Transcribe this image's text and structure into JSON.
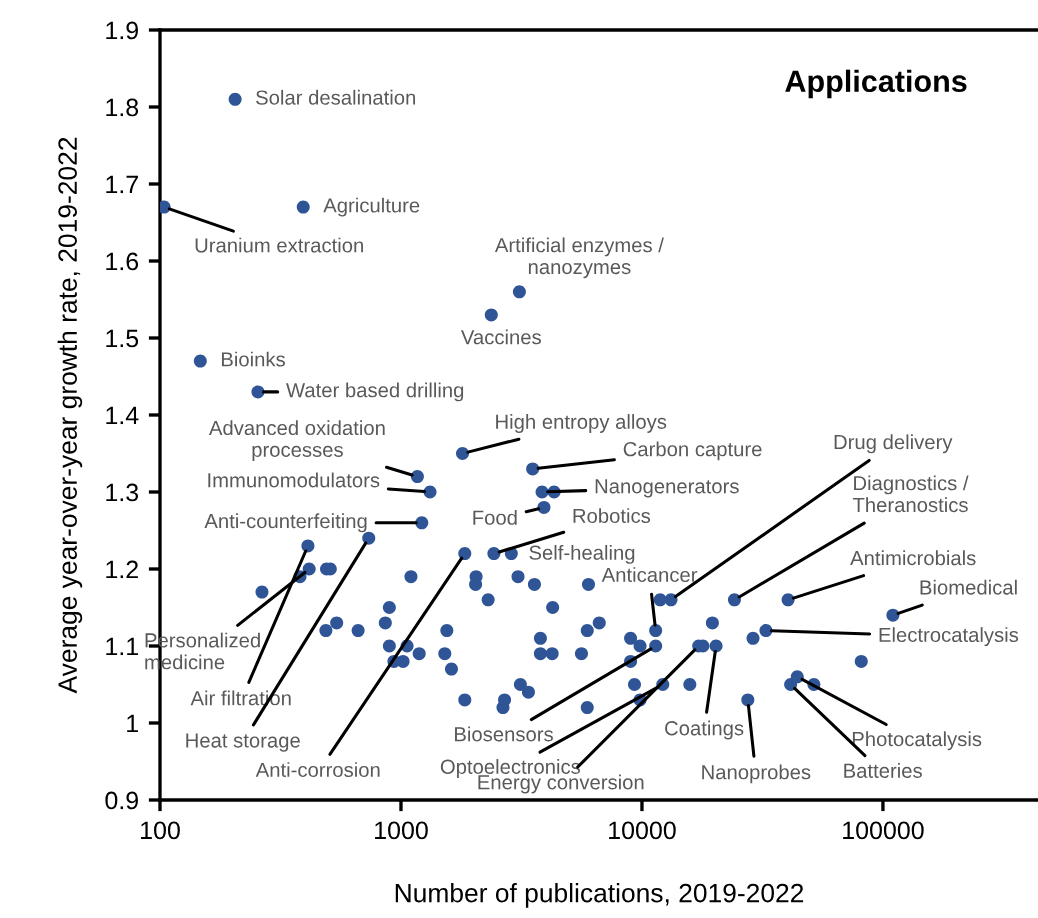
{
  "chart_data": {
    "type": "scatter",
    "title": "Applications",
    "xlabel": "Number of publications, 2019-2022",
    "ylabel": "Average year-over-year growth rate, 2019-2022",
    "log": "x",
    "xlim": [
      100,
      440000
    ],
    "xticks": [
      100,
      1000,
      10000,
      100000
    ],
    "ylim": [
      0.9,
      1.9
    ],
    "yticks": [
      0.9,
      1,
      1.1,
      1.2,
      1.3,
      1.4,
      1.5,
      1.6,
      1.7,
      1.8,
      1.9
    ],
    "grid": false,
    "marker": "circle",
    "series": [
      {
        "color": "#2f5597",
        "x": [
          205,
          104,
          393,
          3100,
          2370,
          147,
          255,
          1800,
          1170,
          1320,
          1220,
          735,
          411,
          416,
          381,
          265,
          491,
          509,
          488,
          541,
          664,
          861,
          895,
          1100,
          1840,
          895,
          935,
          1020,
          1060,
          1190,
          1550,
          1520,
          1620,
          1840,
          2050,
          2040,
          2300,
          2430,
          2870,
          3060,
          2650,
          2690,
          3130,
          3380,
          3580,
          4260,
          3790,
          3790,
          4240,
          3520,
          3850,
          4320,
          3920,
          6000,
          5930,
          6650,
          5610,
          5930,
          8970,
          8970,
          9820,
          11400,
          11400,
          9310,
          9820,
          12200,
          11900,
          13200,
          15800,
          19600,
          17200,
          17900,
          20300,
          24200,
          28900,
          32700,
          27500,
          40400,
          41400,
          44100,
          51700,
          81300,
          110000
        ],
        "values": [
          1.81,
          1.67,
          1.67,
          1.56,
          1.53,
          1.47,
          1.43,
          1.35,
          1.32,
          1.3,
          1.26,
          1.24,
          1.23,
          1.2,
          1.19,
          1.17,
          1.2,
          1.2,
          1.12,
          1.13,
          1.12,
          1.13,
          1.15,
          1.19,
          1.22,
          1.1,
          1.08,
          1.08,
          1.1,
          1.09,
          1.12,
          1.09,
          1.07,
          1.03,
          1.19,
          1.18,
          1.16,
          1.22,
          1.22,
          1.19,
          1.02,
          1.03,
          1.05,
          1.04,
          1.18,
          1.15,
          1.11,
          1.09,
          1.09,
          1.33,
          1.3,
          1.3,
          1.28,
          1.18,
          1.12,
          1.13,
          1.09,
          1.02,
          1.11,
          1.08,
          1.1,
          1.12,
          1.1,
          1.05,
          1.03,
          1.05,
          1.16,
          1.16,
          1.05,
          1.13,
          1.1,
          1.1,
          1.1,
          1.16,
          1.11,
          1.12,
          1.03,
          1.16,
          1.05,
          1.06,
          1.05,
          1.08,
          1.14
        ]
      }
    ],
    "annotations": [
      {
        "text": "Solar desalination",
        "x": 205,
        "y": 1.81
      },
      {
        "text": "Uranium extraction",
        "x": 104,
        "y": 1.67
      },
      {
        "text": "Agriculture",
        "x": 393,
        "y": 1.67
      },
      {
        "text": "Artificial enzymes /\nnanozymes",
        "x": 3100,
        "y": 1.56
      },
      {
        "text": "Vaccines",
        "x": 2370,
        "y": 1.53
      },
      {
        "text": "Bioinks",
        "x": 147,
        "y": 1.47
      },
      {
        "text": "Water based drilling",
        "x": 255,
        "y": 1.43
      },
      {
        "text": "Advanced oxidation\nprocesses",
        "x": 1170,
        "y": 1.32
      },
      {
        "text": "High entropy alloys",
        "x": 1800,
        "y": 1.35
      },
      {
        "text": "Immunomodulators",
        "x": 1320,
        "y": 1.3
      },
      {
        "text": "Carbon capture",
        "x": 3520,
        "y": 1.33
      },
      {
        "text": "Nanogenerators",
        "x": 3850,
        "y": 1.3
      },
      {
        "text": "Food",
        "x": 3920,
        "y": 1.28
      },
      {
        "text": "Robotics",
        "x": 2430,
        "y": 1.22
      },
      {
        "text": "Anti-counterfeiting",
        "x": 1220,
        "y": 1.26
      },
      {
        "text": "Self-healing",
        "x": 3580,
        "y": 1.18
      },
      {
        "text": "Anticancer",
        "x": 11400,
        "y": 1.12
      },
      {
        "text": "Drug delivery",
        "x": 13200,
        "y": 1.16
      },
      {
        "text": "Diagnostics /\nTheranostics",
        "x": 24200,
        "y": 1.16
      },
      {
        "text": "Antimicrobials",
        "x": 40400,
        "y": 1.16
      },
      {
        "text": "Biomedical",
        "x": 110000,
        "y": 1.14
      },
      {
        "text": "Electrocatalysis",
        "x": 32700,
        "y": 1.12
      },
      {
        "text": "Personalized\nmedicine",
        "x": 416,
        "y": 1.2
      },
      {
        "text": "Air filtration",
        "x": 411,
        "y": 1.23
      },
      {
        "text": "Heat storage",
        "x": 735,
        "y": 1.24
      },
      {
        "text": "Anti-corrosion",
        "x": 1840,
        "y": 1.22
      },
      {
        "text": "Biosensors",
        "x": 11400,
        "y": 1.1
      },
      {
        "text": "Optoelectronics",
        "x": 12200,
        "y": 1.05
      },
      {
        "text": "Energy conversion",
        "x": 17200,
        "y": 1.1
      },
      {
        "text": "Coatings",
        "x": 20300,
        "y": 1.1
      },
      {
        "text": "Nanoprobes",
        "x": 27500,
        "y": 1.03
      },
      {
        "text": "Photocatalysis",
        "x": 44100,
        "y": 1.06
      },
      {
        "text": "Batteries",
        "x": 41400,
        "y": 1.05
      }
    ]
  }
}
